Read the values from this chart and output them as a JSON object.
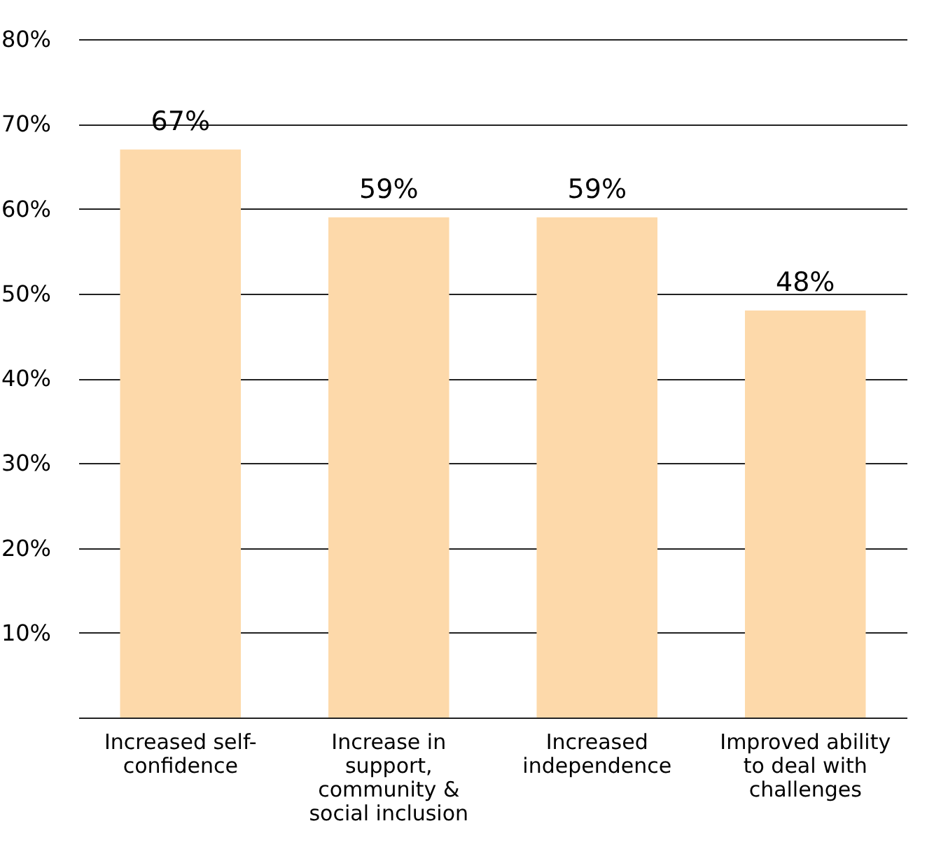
{
  "chart_data": {
    "type": "bar",
    "categories": [
      "Increased self-confidence",
      "Increase in support, community & social inclusion",
      "Increased independence",
      "Improved ability to deal with challenges"
    ],
    "values": [
      67,
      59,
      59,
      48
    ],
    "value_labels": [
      "67%",
      "59%",
      "59%",
      "48%"
    ],
    "color": "#fdd9aa",
    "ylim": [
      0,
      80
    ],
    "yticks": [
      {
        "value": 0,
        "label": null
      },
      {
        "value": 10,
        "label": "10%"
      },
      {
        "value": 20,
        "label": "20%"
      },
      {
        "value": 30,
        "label": "30%"
      },
      {
        "value": 40,
        "label": "40%"
      },
      {
        "value": 50,
        "label": "50%"
      },
      {
        "value": 60,
        "label": "60%"
      },
      {
        "value": 70,
        "label": "70%"
      },
      {
        "value": 80,
        "label": "80%"
      }
    ],
    "grid": true
  }
}
